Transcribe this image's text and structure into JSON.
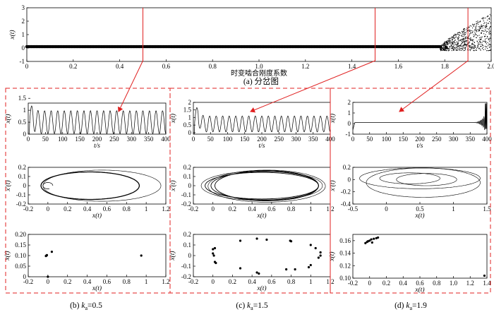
{
  "chart_data": [
    {
      "id": "bifurcation",
      "type": "scatter",
      "title": "(a) 分岔图",
      "xlabel": "时变啮合刚度系数",
      "ylabel": "x(t)",
      "xlim": [
        0,
        2.0
      ],
      "ylim": [
        -1,
        3
      ],
      "xticks": [
        "0",
        "0.2",
        "0.4",
        "0.6",
        "0.8",
        "1.0",
        "1.2",
        "1.4",
        "1.6",
        "1.8",
        "2.0"
      ],
      "yticks": [
        "-1",
        "0",
        "1",
        "2",
        "3"
      ],
      "markers_x": [
        0.5,
        1.5,
        1.9
      ],
      "description_points": {
        "flat_value": 0.1,
        "chaos_start": 1.78,
        "chaos_max": 2.6,
        "chaos_min": -0.2
      }
    },
    {
      "id": "time-b",
      "type": "line",
      "xlabel": "t/s",
      "ylabel": "x(t)",
      "xlim": [
        0,
        400
      ],
      "ylim": [
        0,
        1.3
      ],
      "xticks": [
        "0",
        "50",
        "100",
        "150",
        "200",
        "250",
        "300",
        "350",
        "400"
      ],
      "yticks": [
        "0",
        "0.5",
        "1",
        "1.5"
      ],
      "transient_peak": 1.22,
      "osc_min": 0.02,
      "osc_max": 0.98,
      "cycles": 21
    },
    {
      "id": "phase-b",
      "type": "line",
      "xlabel": "x(t)",
      "ylabel": "x'(t)",
      "xlim": [
        -0.2,
        1.2
      ],
      "ylim": [
        -0.2,
        0.2
      ],
      "xticks": [
        "-0.2",
        "0",
        "0.2",
        "0.4",
        "0.6",
        "0.8",
        "1",
        "1.2"
      ],
      "yticks": [
        "-0.2",
        "-0.1",
        "0",
        "0.1",
        "0.2"
      ]
    },
    {
      "id": "poincare-b",
      "type": "scatter",
      "xlabel": "x(t)",
      "ylabel": "x(t)",
      "xlim": [
        -0.2,
        1.2
      ],
      "ylim": [
        0,
        0.2
      ],
      "xticks": [
        "-0.2",
        "0",
        "0.2",
        "0.4",
        "0.6",
        "0.8",
        "1",
        "1.2"
      ],
      "yticks": [
        "0",
        "0.05",
        "0.10",
        "0.15",
        "0.20"
      ],
      "points": [
        [
          -0.02,
          0.098
        ],
        [
          -0.015,
          0.1
        ],
        [
          -0.01,
          0.102
        ],
        [
          0.04,
          0.118
        ],
        [
          0.95,
          0.1
        ],
        [
          0.0,
          0.0
        ]
      ]
    },
    {
      "id": "time-c",
      "type": "line",
      "xlabel": "t/s",
      "ylabel": "x(t)",
      "xlim": [
        0,
        400
      ],
      "ylim": [
        -0.1,
        2
      ],
      "xticks": [
        "0",
        "50",
        "100",
        "150",
        "200",
        "250",
        "300",
        "350",
        "400"
      ],
      "yticks": [
        "0",
        "0.5",
        "1",
        "1.5",
        "2"
      ],
      "transient_peak": 1.75,
      "osc_min": 0.05,
      "osc_max": 1.1,
      "cycles": 21
    },
    {
      "id": "phase-c",
      "type": "line",
      "xlabel": "x(t)",
      "ylabel": "x'(t)",
      "xlim": [
        -0.2,
        1.2
      ],
      "ylim": [
        -0.2,
        0.2
      ],
      "xticks": [
        "-0.2",
        "0",
        "0.2",
        "0.4",
        "0.6",
        "0.8",
        "1",
        "1.2"
      ],
      "yticks": [
        "-0.2",
        "-0.1",
        "0",
        "0.1",
        "0.2"
      ]
    },
    {
      "id": "poincare-c",
      "type": "scatter",
      "xlabel": "x(t)",
      "ylabel": "x(t)",
      "xlim": [
        -0.2,
        1.2
      ],
      "ylim": [
        -0.2,
        0.2
      ],
      "xticks": [
        "-0.2",
        "0",
        "0.2",
        "0.4",
        "0.6",
        "0.8",
        "1",
        "1.2"
      ],
      "yticks": [
        "-0.2",
        "-0.1",
        "0",
        "0.1",
        "0.2"
      ],
      "points": [
        [
          0.0,
          0.06
        ],
        [
          0.02,
          0.07
        ],
        [
          0.0,
          0.02
        ],
        [
          0.01,
          0.0
        ],
        [
          0.02,
          -0.06
        ],
        [
          0.03,
          -0.07
        ],
        [
          0.28,
          0.14
        ],
        [
          0.45,
          0.16
        ],
        [
          0.55,
          0.15
        ],
        [
          0.79,
          0.14
        ],
        [
          0.8,
          0.135
        ],
        [
          1.0,
          0.1
        ],
        [
          1.05,
          0.07
        ],
        [
          1.1,
          0.03
        ],
        [
          1.1,
          0.0
        ],
        [
          1.08,
          -0.02
        ],
        [
          1.0,
          -0.09
        ],
        [
          0.98,
          -0.11
        ],
        [
          0.84,
          -0.13
        ],
        [
          0.75,
          -0.13
        ],
        [
          0.28,
          -0.12
        ],
        [
          0.45,
          -0.16
        ],
        [
          0.47,
          -0.17
        ]
      ]
    },
    {
      "id": "time-d",
      "type": "line",
      "xlabel": "t/s",
      "ylabel": "x(t)",
      "xlim": [
        0,
        400
      ],
      "ylim": [
        -1,
        2
      ],
      "xticks": [
        "0",
        "50",
        "100",
        "150",
        "200",
        "250",
        "300",
        "350",
        "400"
      ],
      "yticks": [
        "-1",
        "0",
        "1",
        "2"
      ],
      "flat_value": 0.1,
      "burst_start": 355,
      "burst_max": 1.9,
      "burst_min": -0.5
    },
    {
      "id": "phase-d",
      "type": "line",
      "xlabel": "x(t)",
      "ylabel": "x'(t)",
      "xlim": [
        -0.5,
        1.5
      ],
      "ylim": [
        -0.4,
        0.2
      ],
      "xticks": [
        "-0.5",
        "0",
        "0.5",
        "1",
        "1.5"
      ],
      "yticks": [
        "-0.4",
        "-0.2",
        "0",
        "0.2"
      ]
    },
    {
      "id": "poincare-d",
      "type": "scatter",
      "xlabel": "x(t)",
      "ylabel": "x(t)",
      "xlim": [
        -0.2,
        1.4
      ],
      "ylim": [
        0.1,
        0.17
      ],
      "xticks": [
        "-0.2",
        "0",
        "0.2",
        "0.4",
        "0.6",
        "0.8",
        "1.0",
        "1.2",
        "1.4"
      ],
      "yticks": [
        "0.10",
        "0.12",
        "0.14",
        "0.16"
      ],
      "points": [
        [
          -0.05,
          0.156
        ],
        [
          -0.03,
          0.158
        ],
        [
          -0.02,
          0.159
        ],
        [
          0.0,
          0.16
        ],
        [
          0.02,
          0.162
        ],
        [
          0.05,
          0.163
        ],
        [
          0.08,
          0.164
        ],
        [
          0.1,
          0.165
        ],
        [
          0.03,
          0.157
        ],
        [
          1.37,
          0.104
        ]
      ]
    }
  ],
  "captions": {
    "b": {
      "prefix": "(b) ",
      "k": "k",
      "sub": "a",
      "val": "=0.5"
    },
    "c": {
      "prefix": "(c) ",
      "k": "k",
      "sub": "a",
      "val": "=1.5"
    },
    "d": {
      "prefix": "(d) ",
      "k": "k",
      "sub": "a",
      "val": "=1.9"
    }
  },
  "colors": {
    "marker": "#e02020",
    "ink": "#000000"
  }
}
